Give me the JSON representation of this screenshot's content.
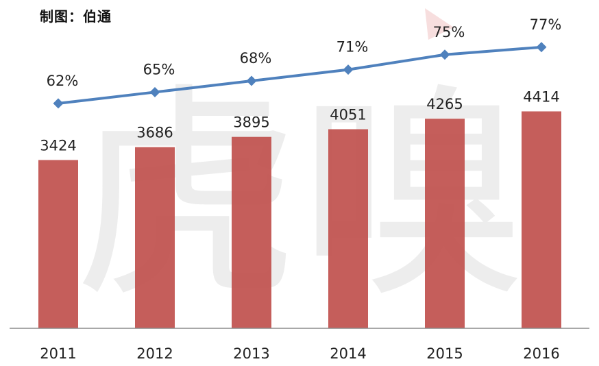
{
  "header": {
    "credit": "制图：伯通"
  },
  "watermark": {
    "text": "虎嗅"
  },
  "colors": {
    "bar": "#c0504d",
    "line": "#4f81bd",
    "axis": "#8c8c8c",
    "watermark": "#e8e8e8",
    "watermark_accent": "#f7dede"
  },
  "chart_data": {
    "type": "bar",
    "categories": [
      "2011",
      "2012",
      "2013",
      "2014",
      "2015",
      "2016"
    ],
    "series": [
      {
        "type": "bar",
        "values": [
          3424,
          3686,
          3895,
          4051,
          4265,
          4414
        ],
        "labels": [
          "3424",
          "3686",
          "3895",
          "4051",
          "4265",
          "4414"
        ]
      },
      {
        "type": "line",
        "values": [
          62,
          65,
          68,
          71,
          75,
          77
        ],
        "labels": [
          "62%",
          "65%",
          "68%",
          "71%",
          "75%",
          "77%"
        ]
      }
    ],
    "bar_ylim": [
      0,
      6680
    ],
    "line_ylim": [
      0,
      100
    ],
    "grid": false,
    "legend": "none"
  }
}
